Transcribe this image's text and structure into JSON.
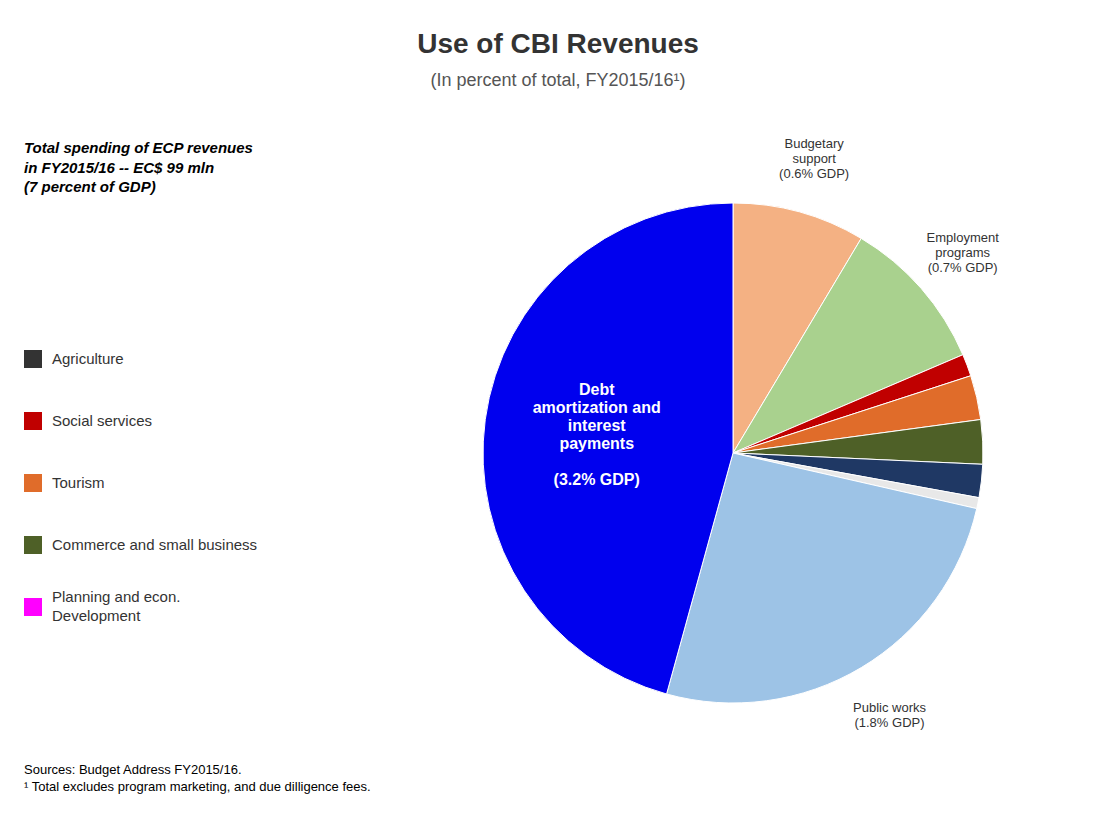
{
  "chart_data": {
    "type": "pie",
    "title": "Use of CBI Revenues",
    "subtitle": "(In percent of total, FY2015/16¹)",
    "categories": [
      "Budgetary\nsupport\n(0.6% GDP)",
      "Employment\nprograms\n(0.7% GDP)",
      null,
      null,
      null,
      null,
      null,
      "Public works\n(1.8% GDP)",
      "Debt\namortization and\ninterest\npayments\n\n(3.2% GDP)"
    ],
    "values": [
      8.57,
      10.0,
      1.43,
      2.86,
      2.86,
      2.14,
      0.71,
      25.71,
      45.72
    ],
    "colors": [
      "#F4B183",
      "#A9D18E",
      "#C00000",
      "#E06C2A",
      "#4E6027",
      "#1F3864",
      "#E8E8E8",
      "#9DC3E6",
      "#0000EE"
    ],
    "annotations": [
      "Total spending of ECP revenues\nin FY2015/16  -- EC$ 99 mln\n(7 percent of GDP)",
      "Sources: Budget Address FY2015/16.\n¹ Total excludes program marketing, and due dilligence fees."
    ],
    "legend": "left",
    "legend_items": [
      {
        "name": "Agriculture",
        "color": "#333333"
      },
      {
        "name": "Social services",
        "color": "#C00000"
      },
      {
        "name": "Tourism",
        "color": "#E06C2A"
      },
      {
        "name": "Commerce and small business",
        "color": "#4E6027"
      },
      {
        "name": "Planning and econ.\nDevelopment",
        "color": "#FF00FF"
      }
    ]
  }
}
